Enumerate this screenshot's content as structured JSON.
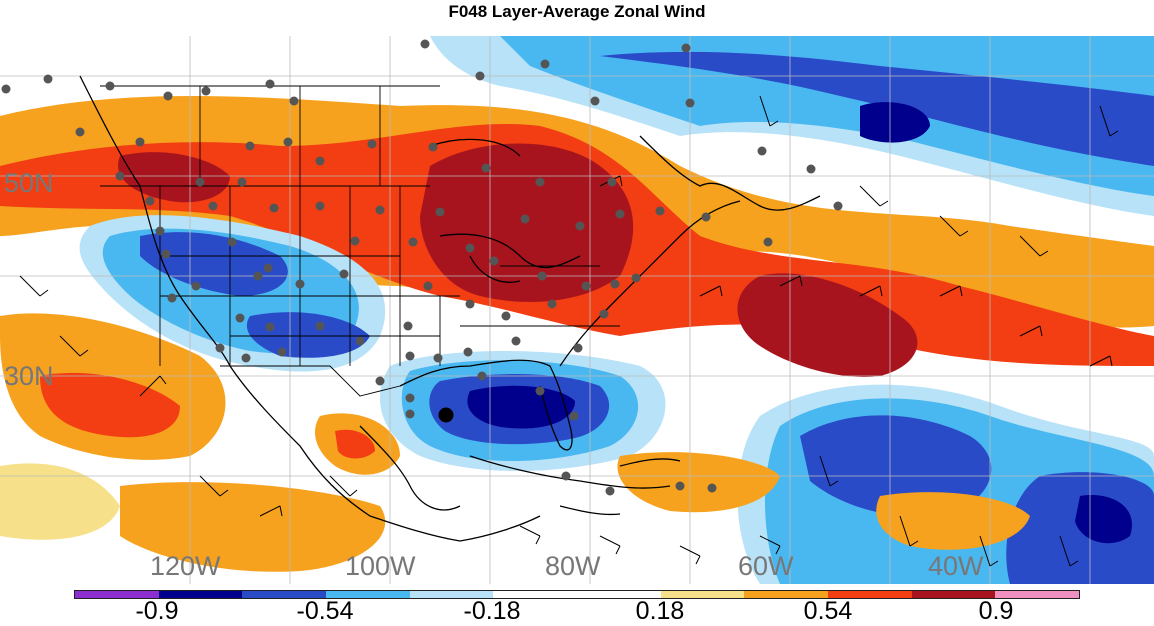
{
  "title": "F048 Layer-Average Zonal Wind",
  "map": {
    "longitude_labels": [
      "120W",
      "100W",
      "80W",
      "60W",
      "40W"
    ],
    "latitude_labels": [
      "50N",
      "30N"
    ],
    "region": "North America and western North Atlantic",
    "overlays": [
      "filled contours",
      "wind barbs",
      "station dots",
      "coastlines",
      "state/country borders",
      "lat/lon grid"
    ]
  },
  "colorbar": {
    "colors": [
      "#8c2fd0",
      "#00008c",
      "#2a4bc8",
      "#4ab8f0",
      "#b8e2f8",
      "#ffffff",
      "#ffffff",
      "#f6e08a",
      "#f6a21e",
      "#f23e12",
      "#a8141e",
      "#f090c0"
    ],
    "labels": [
      "-0.9",
      "-0.54",
      "-0.18",
      "0.18",
      "0.54",
      "0.9"
    ]
  },
  "palette": {
    "dark_red": "#a8141e",
    "red_orange": "#f23e12",
    "orange": "#f6a21e",
    "light_yellow": "#f6e08a",
    "light_blue": "#b8e2f8",
    "cyan_blue": "#4ab8f0",
    "mid_blue": "#2a4bc8",
    "navy": "#00008c"
  }
}
